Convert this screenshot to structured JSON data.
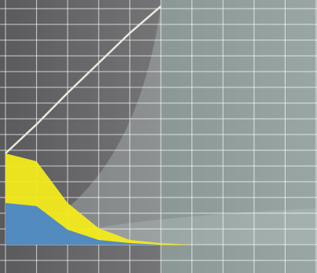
{
  "chart_data": {
    "type": "area",
    "x": [
      0,
      1,
      2,
      3,
      4,
      5,
      6,
      7,
      8,
      9,
      10
    ],
    "series": [
      {
        "type": "area",
        "color": "#f2ea1c",
        "values": [
          5.8,
          5.3,
          2.65,
          1.05,
          0.3,
          0.1,
          0,
          0,
          0,
          0,
          0
        ]
      },
      {
        "type": "area",
        "color": "#4a86c8",
        "values": [
          2.65,
          2.45,
          0.95,
          0.3,
          0.1,
          0,
          0,
          0,
          0,
          0,
          0
        ]
      },
      {
        "type": "line",
        "color": "#e8eadc",
        "values": [
          5.8,
          7.65,
          9.65,
          11.55,
          13.45,
          15.15,
          null,
          null,
          null,
          null,
          null
        ]
      }
    ],
    "xlim": [
      0,
      10
    ],
    "ylim": [
      -1.8,
      15.55
    ],
    "xticks": [
      0,
      1,
      2,
      3,
      4,
      5,
      6,
      7,
      8,
      9,
      10
    ],
    "yticks": [
      -1,
      0,
      1,
      2,
      3,
      4,
      5,
      6,
      7,
      8,
      9,
      10,
      11,
      12,
      13,
      14,
      15
    ],
    "grid": true
  }
}
